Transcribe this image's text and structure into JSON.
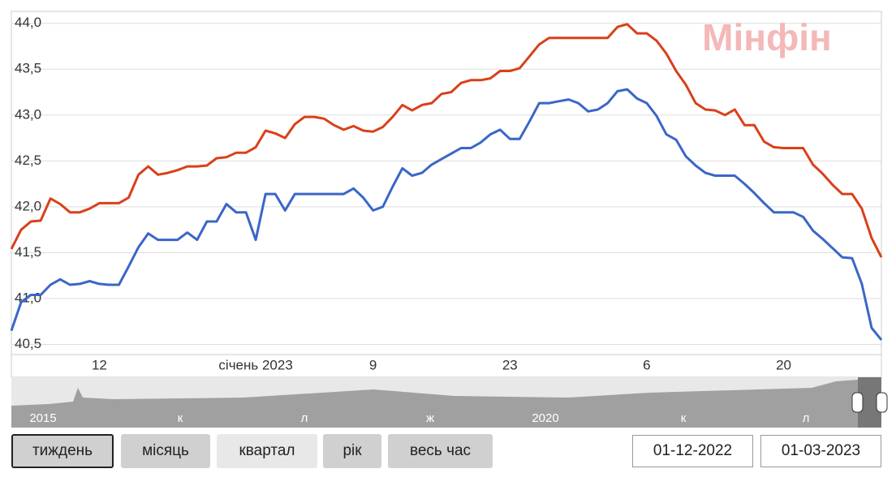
{
  "chart_data": {
    "type": "line",
    "watermark": "Мінфін",
    "categories": [
      null,
      null,
      null,
      null,
      null,
      null,
      null,
      null,
      null,
      "12",
      null,
      null,
      null,
      null,
      null,
      null,
      null,
      null,
      null,
      null,
      null,
      null,
      null,
      null,
      null,
      "січень 2023",
      null,
      null,
      null,
      null,
      null,
      null,
      null,
      null,
      null,
      null,
      null,
      "9",
      null,
      null,
      null,
      null,
      null,
      null,
      null,
      null,
      null,
      null,
      null,
      null,
      null,
      "23",
      null,
      null,
      null,
      null,
      null,
      null,
      null,
      null,
      null,
      null,
      null,
      null,
      null,
      "6",
      null,
      null,
      null,
      null,
      null,
      null,
      null,
      null,
      null,
      null,
      null,
      null,
      null,
      "20",
      null,
      null,
      null,
      null,
      null,
      null,
      null,
      null,
      null,
      null
    ],
    "series": [
      {
        "color": "#d9401a",
        "values": [
          41.54,
          41.75,
          41.84,
          41.85,
          42.09,
          42.03,
          41.94,
          41.94,
          41.98,
          42.04,
          42.04,
          42.04,
          42.1,
          42.35,
          42.44,
          42.35,
          42.37,
          42.4,
          42.44,
          42.44,
          42.45,
          42.53,
          42.54,
          42.59,
          42.59,
          42.65,
          42.83,
          42.8,
          42.75,
          42.9,
          42.98,
          42.98,
          42.96,
          42.89,
          42.84,
          42.88,
          42.83,
          42.82,
          42.87,
          42.98,
          43.11,
          43.05,
          43.11,
          43.13,
          43.23,
          43.25,
          43.35,
          43.38,
          43.38,
          43.4,
          43.48,
          43.48,
          43.51,
          43.64,
          43.77,
          43.84,
          43.84,
          43.84,
          43.84,
          43.84,
          43.84,
          43.84,
          43.96,
          43.99,
          43.89,
          43.89,
          43.81,
          43.67,
          43.48,
          43.33,
          43.13,
          43.06,
          43.05,
          43.0,
          43.06,
          42.89,
          42.89,
          42.71,
          42.65,
          42.64,
          42.64,
          42.64,
          42.46,
          42.36,
          42.24,
          42.14,
          42.14,
          41.98,
          41.66,
          41.45
        ]
      },
      {
        "color": "#3a66c8",
        "values": [
          40.65,
          40.96,
          41.04,
          41.04,
          41.15,
          41.21,
          41.15,
          41.16,
          41.19,
          41.16,
          41.15,
          41.15,
          41.35,
          41.56,
          41.71,
          41.64,
          41.64,
          41.64,
          41.72,
          41.64,
          41.84,
          41.84,
          42.03,
          41.94,
          41.94,
          41.64,
          42.14,
          42.14,
          41.96,
          42.14,
          42.14,
          42.14,
          42.14,
          42.14,
          42.14,
          42.2,
          42.1,
          41.96,
          42.0,
          42.22,
          42.42,
          42.34,
          42.37,
          42.46,
          42.52,
          42.58,
          42.64,
          42.64,
          42.7,
          42.79,
          42.84,
          42.74,
          42.74,
          42.93,
          43.13,
          43.13,
          43.15,
          43.17,
          43.13,
          43.04,
          43.06,
          43.13,
          43.26,
          43.28,
          43.18,
          43.13,
          42.99,
          42.79,
          42.73,
          42.55,
          42.45,
          42.37,
          42.34,
          42.34,
          42.34,
          42.25,
          42.15,
          42.04,
          41.94,
          41.94,
          41.94,
          41.89,
          41.74,
          41.65,
          41.55,
          41.45,
          41.44,
          41.16,
          40.68,
          40.55
        ]
      }
    ],
    "ylim": [
      40.39,
      44.13
    ],
    "yticks": [
      {
        "value": 40.5,
        "label": "40,5"
      },
      {
        "value": 41,
        "label": "41,0"
      },
      {
        "value": 41.5,
        "label": "41,5"
      },
      {
        "value": 42,
        "label": "42,0"
      },
      {
        "value": 42.5,
        "label": "42,5"
      },
      {
        "value": 43,
        "label": "43,0"
      },
      {
        "value": 43.5,
        "label": "43,5"
      },
      {
        "value": 44,
        "label": "44,0"
      }
    ],
    "grid": true
  },
  "navigator": {
    "labels": [
      "2015",
      "к",
      "л",
      "ж",
      "2020",
      "к",
      "л"
    ]
  },
  "buttons": [
    "тиждень",
    "місяць",
    "квартал",
    "рік",
    "весь час"
  ],
  "date_from": "01-12-2022",
  "date_to": "01-03-2023"
}
